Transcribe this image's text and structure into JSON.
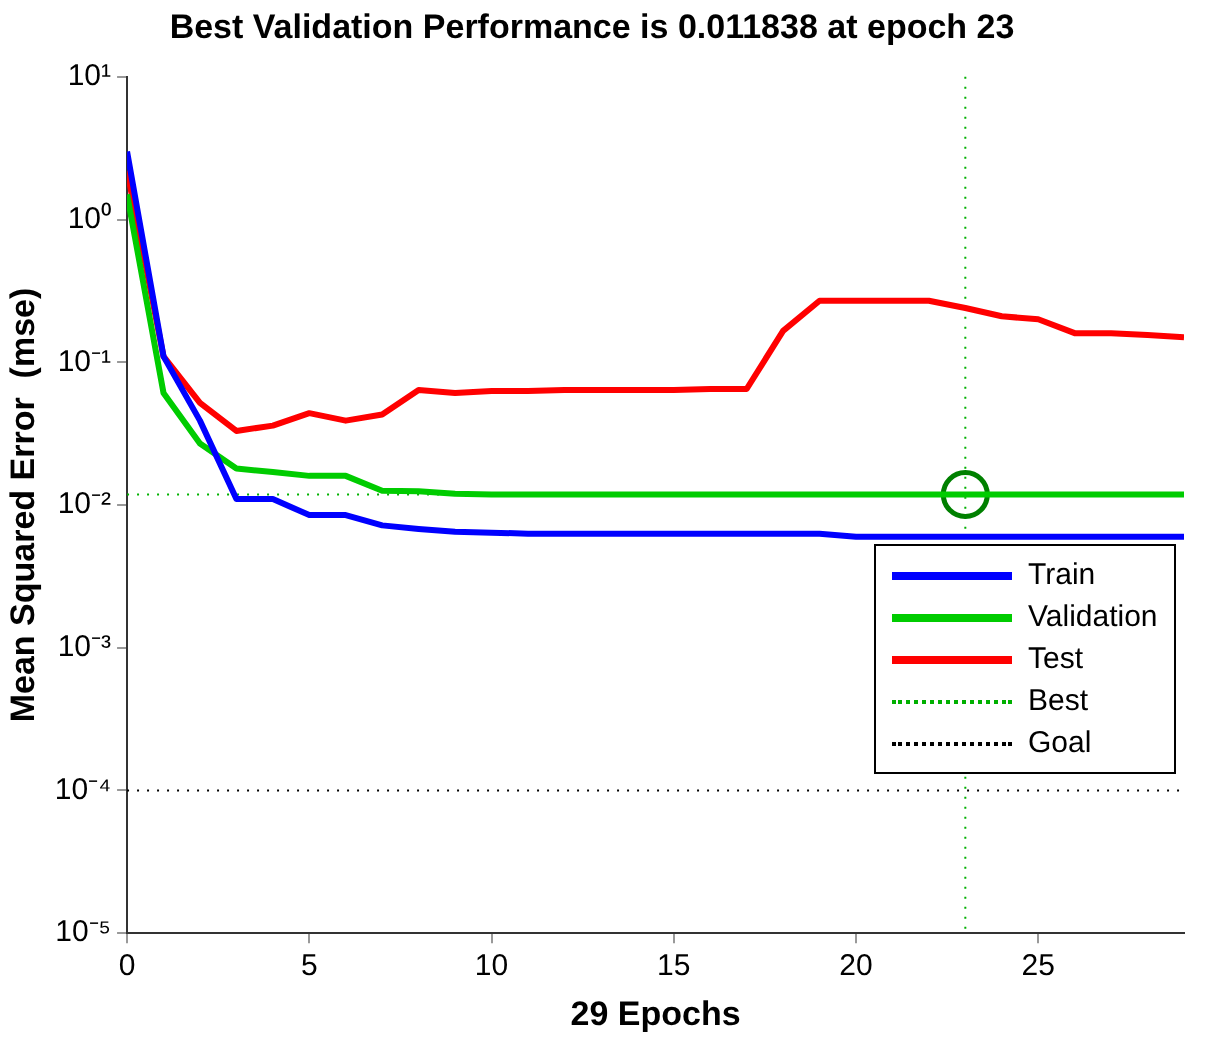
{
  "chart_data": {
    "type": "line",
    "title": "Best Validation Performance is 0.011838 at epoch 23",
    "xlabel": "29 Epochs",
    "ylabel": "Mean Squared Error  (mse)",
    "x": [
      0,
      1,
      2,
      3,
      4,
      5,
      6,
      7,
      8,
      9,
      10,
      11,
      12,
      13,
      14,
      15,
      16,
      17,
      18,
      19,
      20,
      21,
      22,
      23,
      24,
      25,
      26,
      27,
      28,
      29
    ],
    "series": [
      {
        "name": "Train",
        "color": "#0000ff",
        "values": [
          3,
          0.11,
          0.039,
          0.011,
          0.011,
          0.0085,
          0.0085,
          0.0072,
          0.0068,
          0.0065,
          0.0064,
          0.0063,
          0.0063,
          0.0063,
          0.0063,
          0.0063,
          0.0063,
          0.0063,
          0.0063,
          0.0063,
          0.006,
          0.006,
          0.006,
          0.006,
          0.006,
          0.006,
          0.006,
          0.006,
          0.006,
          0.006
        ]
      },
      {
        "name": "Validation",
        "color": "#00cc00",
        "values": [
          1.5,
          0.061,
          0.027,
          0.018,
          0.017,
          0.016,
          0.016,
          0.0126,
          0.0125,
          0.012,
          0.011838,
          0.011838,
          0.011838,
          0.011838,
          0.011838,
          0.011838,
          0.011838,
          0.011838,
          0.011838,
          0.011838,
          0.011838,
          0.011838,
          0.011838,
          0.011838,
          0.011838,
          0.011838,
          0.011838,
          0.011838,
          0.011838,
          0.011838
        ]
      },
      {
        "name": "Test",
        "color": "#ff0000",
        "values": [
          2.2,
          0.11,
          0.052,
          0.033,
          0.036,
          0.044,
          0.039,
          0.043,
          0.064,
          0.061,
          0.063,
          0.063,
          0.064,
          0.064,
          0.064,
          0.064,
          0.065,
          0.065,
          0.166,
          0.27,
          0.27,
          0.27,
          0.27,
          0.24,
          0.21,
          0.2,
          0.16,
          0.16,
          0.155,
          0.15
        ]
      },
      {
        "type": "scatter",
        "marker": "circle",
        "color": "#008000",
        "x": [
          23
        ],
        "values": [
          0.011838
        ]
      }
    ],
    "ref_lines": [
      {
        "axis": "x",
        "value": 23,
        "label": "Best",
        "color": "#00b000",
        "line_style": "dotted"
      },
      {
        "axis": "y",
        "value": 0.011838,
        "color": "#00b000",
        "line_style": "dotted"
      },
      {
        "axis": "y",
        "value": 0.0001,
        "label": "Goal",
        "color": "#000000",
        "line_style": "dotted"
      }
    ],
    "log": "y",
    "grid": false,
    "legend": "bottom right",
    "marker": "none",
    "line_style": "solid",
    "xlim": [
      0,
      29
    ],
    "xticks": [
      0,
      5,
      10,
      15,
      20,
      25
    ],
    "ylim": [
      1e-05,
      10
    ],
    "yticks": [
      {
        "value": 1e-05,
        "label": "10⁻⁵"
      },
      {
        "value": 0.0001,
        "label": "10⁻⁴"
      },
      {
        "value": 0.001,
        "label": "10⁻³"
      },
      {
        "value": 0.01,
        "label": "10⁻²"
      },
      {
        "value": 0.1,
        "label": "10⁻¹"
      },
      {
        "value": 1,
        "label": "10⁰"
      },
      {
        "value": 10,
        "label": "10¹"
      }
    ]
  }
}
